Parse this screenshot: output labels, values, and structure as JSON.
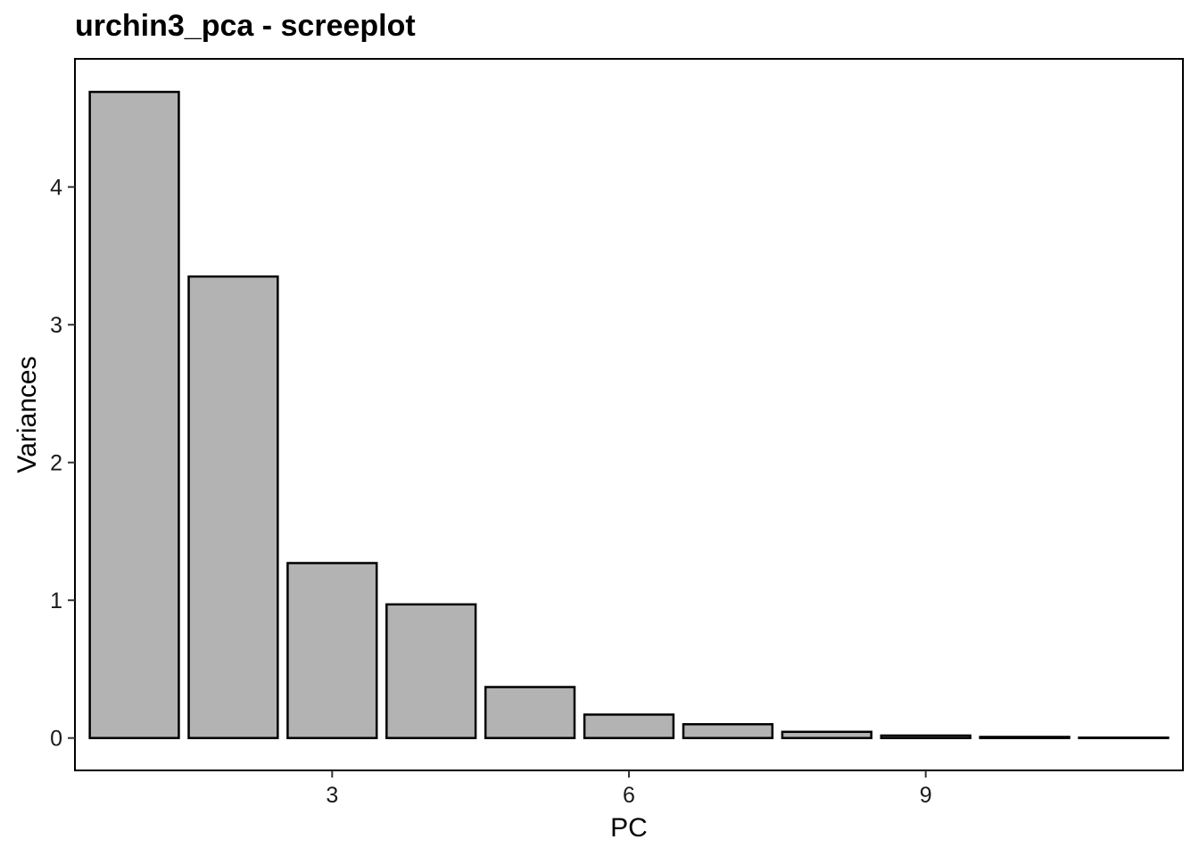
{
  "chart_data": {
    "type": "bar",
    "title": "urchin3_pca - screeplot",
    "xlabel": "PC",
    "ylabel": "Variances",
    "categories": [
      1,
      2,
      3,
      4,
      5,
      6,
      7,
      8,
      9,
      10,
      11
    ],
    "values": [
      4.69,
      3.35,
      1.27,
      0.97,
      0.37,
      0.17,
      0.1,
      0.045,
      0.018,
      0.008,
      0.003
    ],
    "xticks": [
      3,
      6,
      9
    ],
    "yticks": [
      0,
      1,
      2,
      3,
      4
    ],
    "xlim": [
      0.4,
      11.6
    ],
    "ylim": [
      -0.235,
      4.93
    ],
    "bar_fill": "#b3b3b3",
    "bar_stroke": "#000000",
    "grid": false,
    "legend": "none"
  }
}
